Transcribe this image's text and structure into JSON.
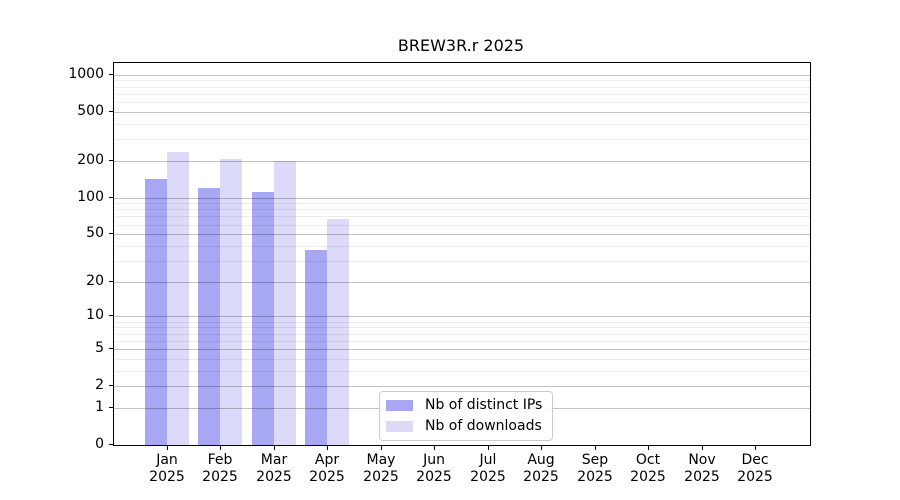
{
  "title": "BREW3R.r 2025",
  "chart_data": {
    "type": "bar",
    "title": "BREW3R.r 2025",
    "categories": [
      "Jan 2025",
      "Feb 2025",
      "Mar 2025",
      "Apr 2025",
      "May 2025",
      "Jun 2025",
      "Jul 2025",
      "Aug 2025",
      "Sep 2025",
      "Oct 2025",
      "Nov 2025",
      "Dec 2025"
    ],
    "series": [
      {
        "name": "Nb of distinct IPs",
        "color": "#a7a7f4",
        "values": [
          142,
          120,
          112,
          37,
          0,
          0,
          0,
          0,
          0,
          0,
          0,
          0
        ]
      },
      {
        "name": "Nb of downloads",
        "color": "#dbdbf9",
        "values": [
          235,
          208,
          200,
          67,
          0,
          0,
          0,
          0,
          0,
          0,
          0,
          0
        ]
      }
    ],
    "xlabel": "",
    "ylabel": "",
    "yscale": "log10(1+y)",
    "yticks_major": [
      0,
      1,
      2,
      5,
      10,
      20,
      50,
      100,
      200,
      500,
      1000
    ],
    "yticks_minor": [
      3,
      4,
      6,
      7,
      8,
      9,
      30,
      40,
      60,
      70,
      80,
      90,
      300,
      400,
      600,
      700,
      800,
      900
    ],
    "ylim": [
      0,
      1243
    ],
    "grid": "horizontal major+minor",
    "legend_position": "inside bottom-center"
  },
  "legend": {
    "entries": [
      "Nb of distinct IPs",
      "Nb of downloads"
    ]
  },
  "colors": {
    "background": "#ffffff",
    "bar_distinct_ips": "#a7a7f4",
    "bar_downloads": "#dbdbf9",
    "grid_major": "#c6c6c6",
    "grid_minor": "#ececec",
    "axis_frame": "#000000",
    "legend_border": "#cccccc",
    "text": "#000000"
  }
}
